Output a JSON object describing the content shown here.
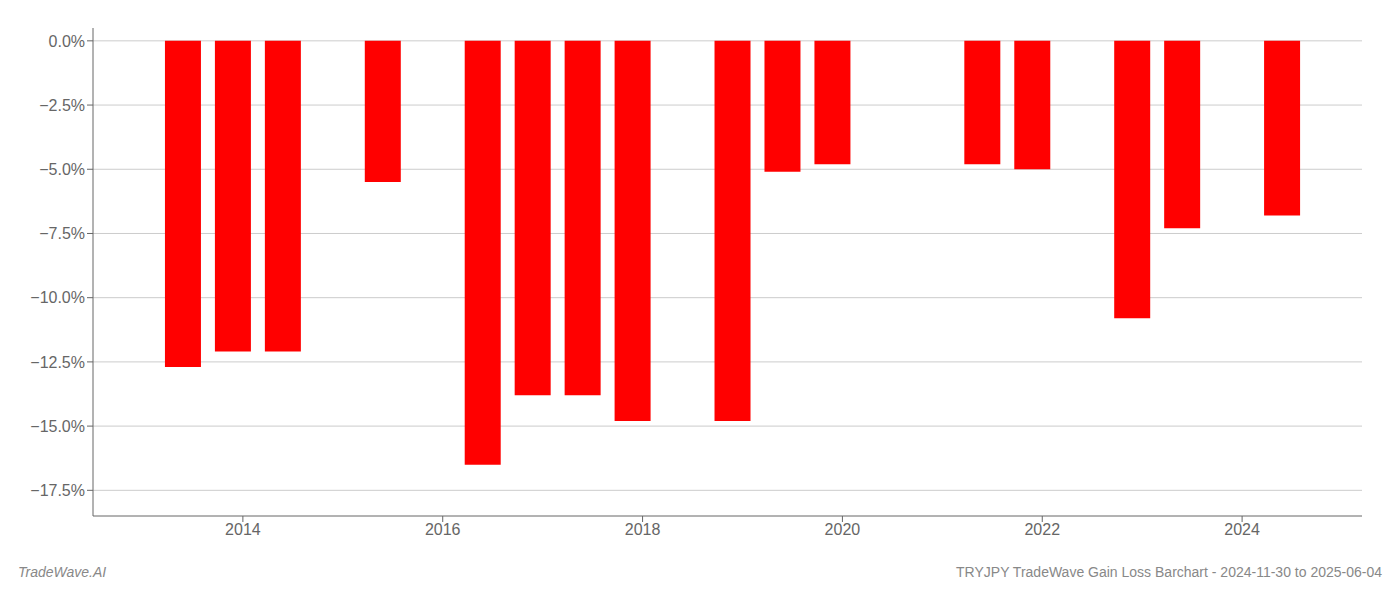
{
  "chart_data": {
    "type": "bar",
    "x": [
      2013.4,
      2013.9,
      2014.4,
      2015.4,
      2016.4,
      2016.9,
      2017.4,
      2017.9,
      2018.9,
      2019.4,
      2019.9,
      2021.4,
      2021.9,
      2022.9,
      2023.4,
      2024.4
    ],
    "values": [
      -0.127,
      -0.121,
      -0.121,
      -0.055,
      -0.165,
      -0.138,
      -0.138,
      -0.148,
      -0.148,
      -0.051,
      -0.048,
      -0.048,
      -0.05,
      -0.108,
      -0.073,
      -0.068
    ],
    "color": "#ff0000",
    "xlim": [
      2012.5,
      2025.2
    ],
    "xticks": [
      2014,
      2016,
      2018,
      2020,
      2022,
      2024
    ],
    "ylim": [
      -0.185,
      0.005
    ],
    "yticks": [
      {
        "value": 0.0,
        "label": "0.0%"
      },
      {
        "value": -0.025,
        "label": "−2.5%"
      },
      {
        "value": -0.05,
        "label": "−5.0%"
      },
      {
        "value": -0.075,
        "label": "−7.5%"
      },
      {
        "value": -0.1,
        "label": "−10.0%"
      },
      {
        "value": -0.125,
        "label": "−12.5%"
      },
      {
        "value": -0.15,
        "label": "−15.0%"
      },
      {
        "value": -0.175,
        "label": "−17.5%"
      }
    ],
    "grid": true,
    "annotations": [
      "TradeWave.AI",
      "TRYJPY TradeWave Gain Loss Barchart - 2024-11-30 to 2025-06-04"
    ]
  }
}
